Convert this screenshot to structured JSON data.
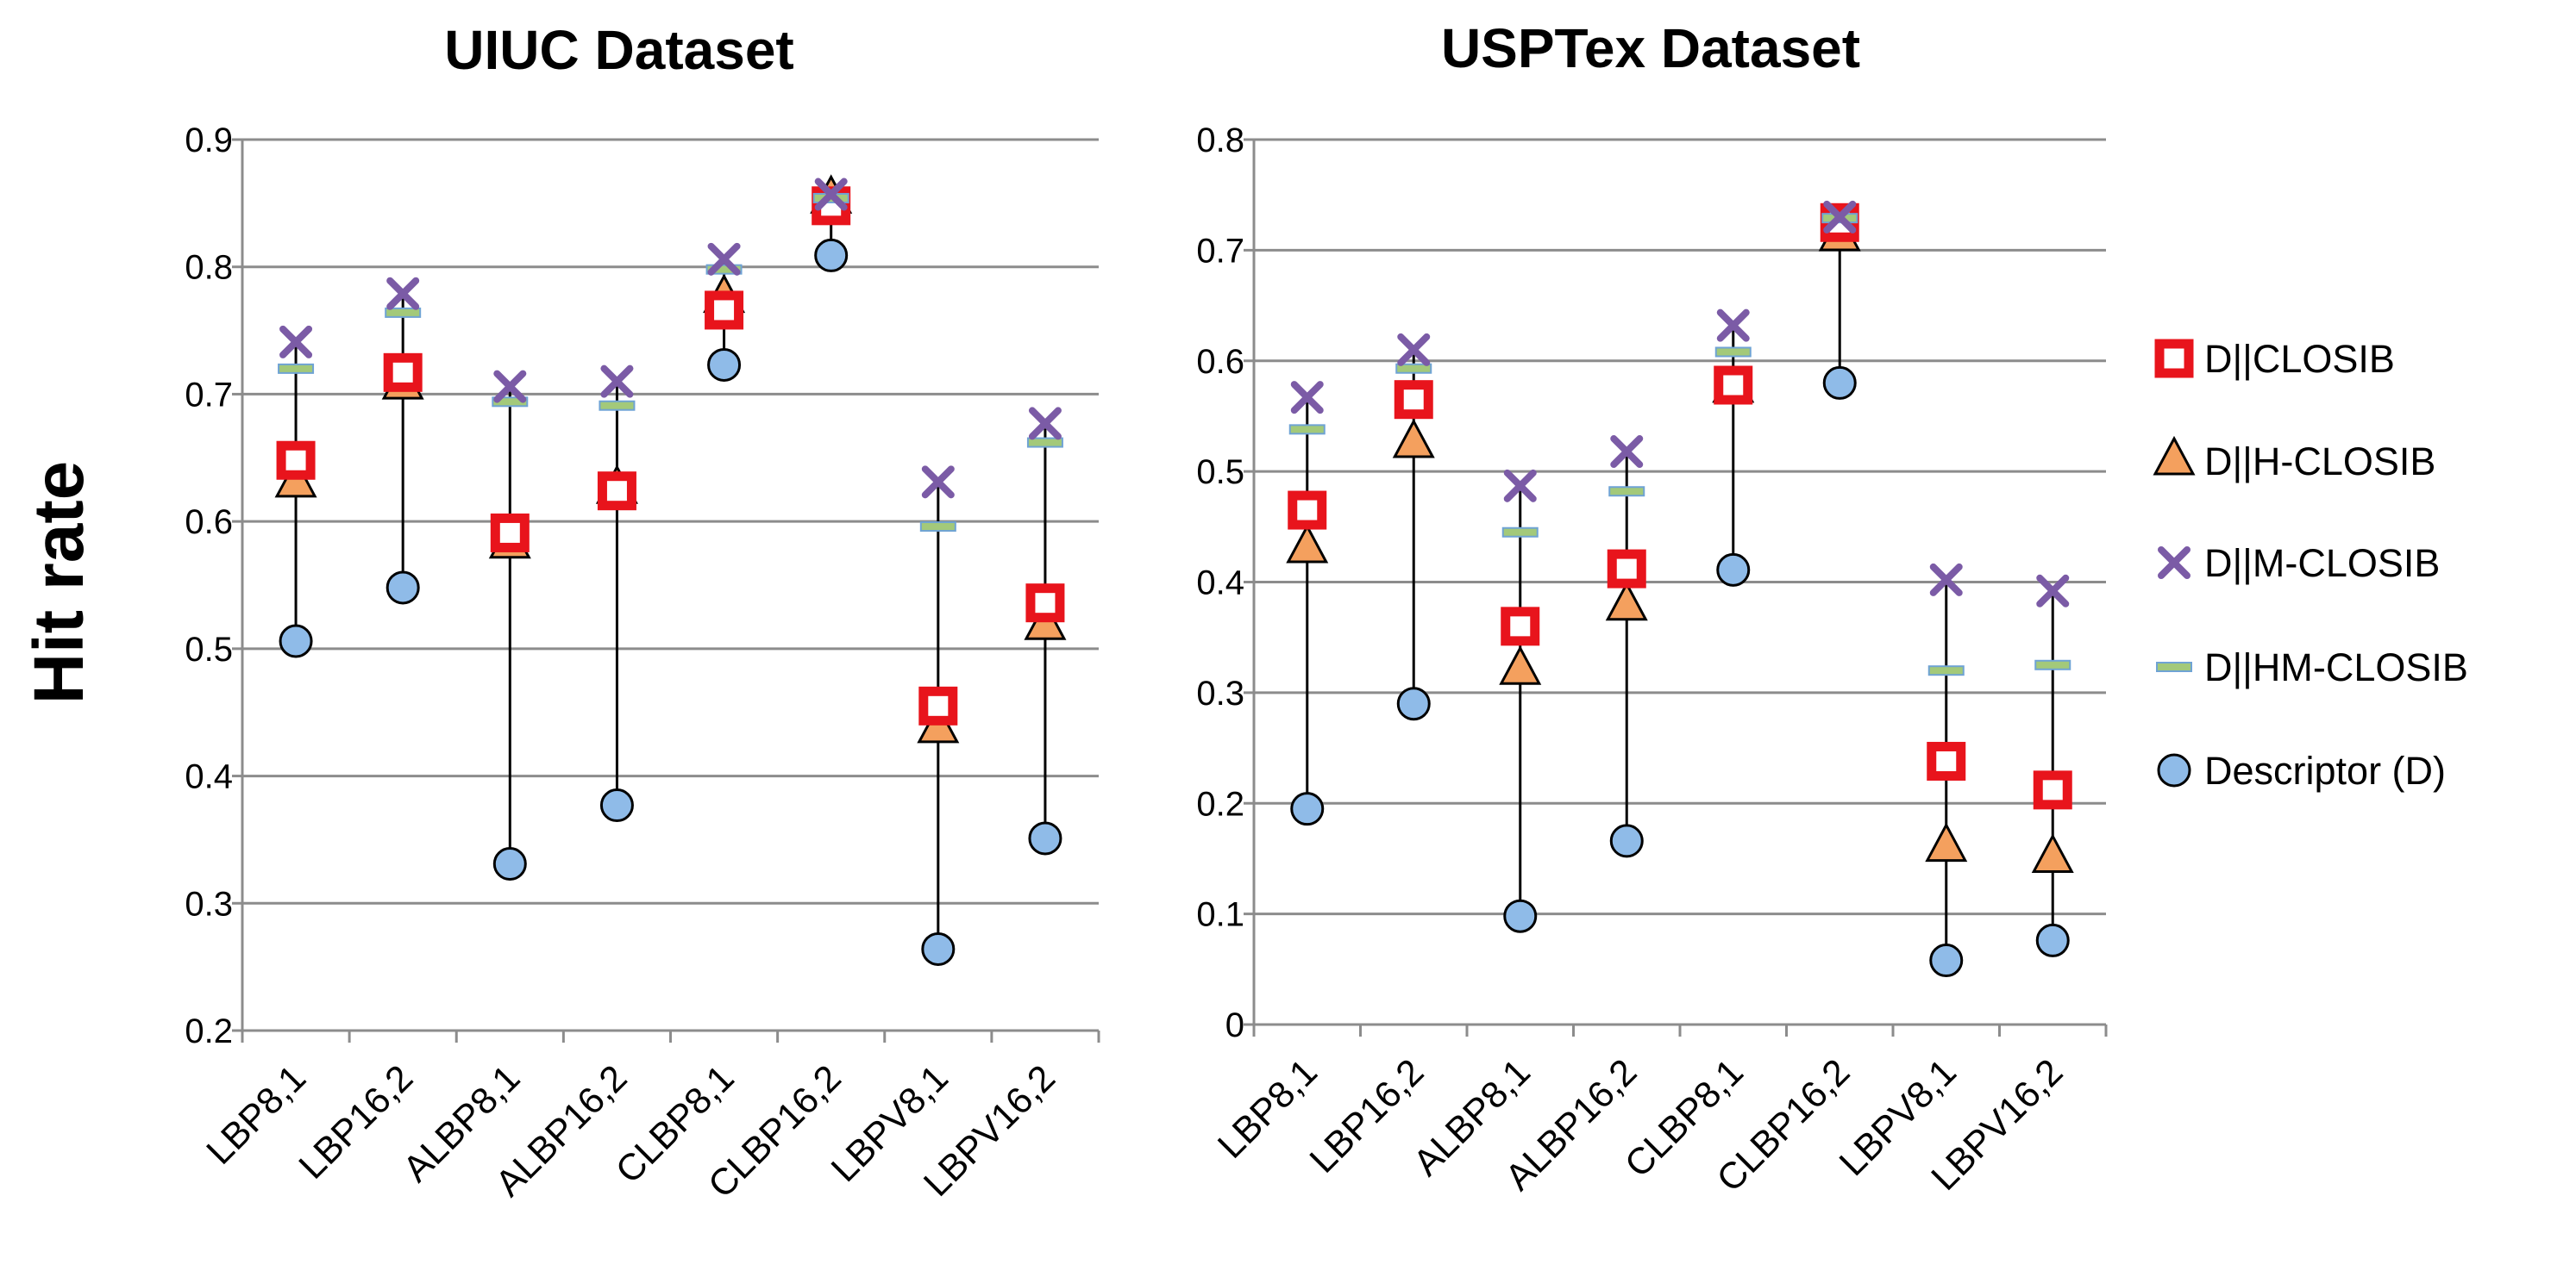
{
  "figure": {
    "ylabel": "Hit rate"
  },
  "legend": [
    {
      "key": "closib",
      "label": "D||CLOSIB"
    },
    {
      "key": "h",
      "label": "D||H-CLOSIB"
    },
    {
      "key": "m",
      "label": "D||M-CLOSIB"
    },
    {
      "key": "hm",
      "label": "D||HM-CLOSIB"
    },
    {
      "key": "d",
      "label": "Descriptor (D)"
    }
  ],
  "colors": {
    "closib": "#e8141c",
    "h_fill": "#f4a05e",
    "m": "#7b5ba6",
    "hm_fill": "#a3c97a",
    "hm_stroke": "#6fa3d4",
    "d_fill": "#8fbbe8",
    "grid": "#8c8c8c"
  },
  "chart_data": [
    {
      "type": "scatter",
      "title": "UIUC Dataset",
      "ylabel": "Hit rate",
      "ylim": [
        0.2,
        0.9
      ],
      "yticks": [
        "0.2",
        "0.3",
        "0.4",
        "0.5",
        "0.6",
        "0.7",
        "0.8",
        "0.9"
      ],
      "ytick_values": [
        0.2,
        0.3,
        0.4,
        0.5,
        0.6,
        0.7,
        0.8,
        0.9
      ],
      "categories": [
        "LBP8,1",
        "LBP16,2",
        "ALBP8,1",
        "ALBP16,2",
        "CLBP8,1",
        "CLBP16,2",
        "LBPV8,1",
        "LBPV16,2"
      ],
      "series": [
        {
          "key": "closib",
          "name": "D||CLOSIB",
          "values": [
            0.648,
            0.717,
            0.591,
            0.624,
            0.766,
            0.848,
            0.455,
            0.536
          ]
        },
        {
          "key": "h",
          "name": "D||H-CLOSIB",
          "values": [
            0.63,
            0.707,
            0.582,
            0.625,
            0.775,
            0.853,
            0.437,
            0.518
          ]
        },
        {
          "key": "m",
          "name": "D||M-CLOSIB",
          "values": [
            0.741,
            0.779,
            0.706,
            0.71,
            0.806,
            0.857,
            0.631,
            0.677
          ]
        },
        {
          "key": "hm",
          "name": "D||HM-CLOSIB",
          "values": [
            0.72,
            0.764,
            0.694,
            0.691,
            0.798,
            0.854,
            0.596,
            0.662
          ]
        },
        {
          "key": "d",
          "name": "Descriptor (D)",
          "values": [
            0.506,
            0.548,
            0.331,
            0.377,
            0.723,
            0.809,
            0.264,
            0.351
          ]
        }
      ]
    },
    {
      "type": "scatter",
      "title": "USPTex Dataset",
      "ylabel": "",
      "ylim": [
        0,
        0.8
      ],
      "yticks": [
        "0",
        "0.1",
        "0.2",
        "0.3",
        "0.4",
        "0.5",
        "0.6",
        "0.7",
        "0.8"
      ],
      "ytick_values": [
        0,
        0.1,
        0.2,
        0.3,
        0.4,
        0.5,
        0.6,
        0.7,
        0.8
      ],
      "categories": [
        "LBP8,1",
        "LBP16,2",
        "ALBP8,1",
        "ALBP16,2",
        "CLBP8,1",
        "CLBP16,2",
        "LBPV8,1",
        "LBPV16,2"
      ],
      "series": [
        {
          "key": "closib",
          "name": "D||CLOSIB",
          "values": [
            0.465,
            0.565,
            0.36,
            0.412,
            0.578,
            0.725,
            0.238,
            0.212
          ]
        },
        {
          "key": "h",
          "name": "D||H-CLOSIB",
          "values": [
            0.43,
            0.525,
            0.32,
            0.378,
            0.575,
            0.712,
            0.16,
            0.15
          ]
        },
        {
          "key": "m",
          "name": "D||M-CLOSIB",
          "values": [
            0.567,
            0.61,
            0.487,
            0.518,
            0.632,
            0.73,
            0.402,
            0.392
          ]
        },
        {
          "key": "hm",
          "name": "D||HM-CLOSIB",
          "values": [
            0.538,
            0.593,
            0.445,
            0.482,
            0.608,
            0.729,
            0.32,
            0.325
          ]
        },
        {
          "key": "d",
          "name": "Descriptor (D)",
          "values": [
            0.195,
            0.29,
            0.098,
            0.166,
            0.411,
            0.58,
            0.058,
            0.076
          ]
        }
      ]
    }
  ]
}
